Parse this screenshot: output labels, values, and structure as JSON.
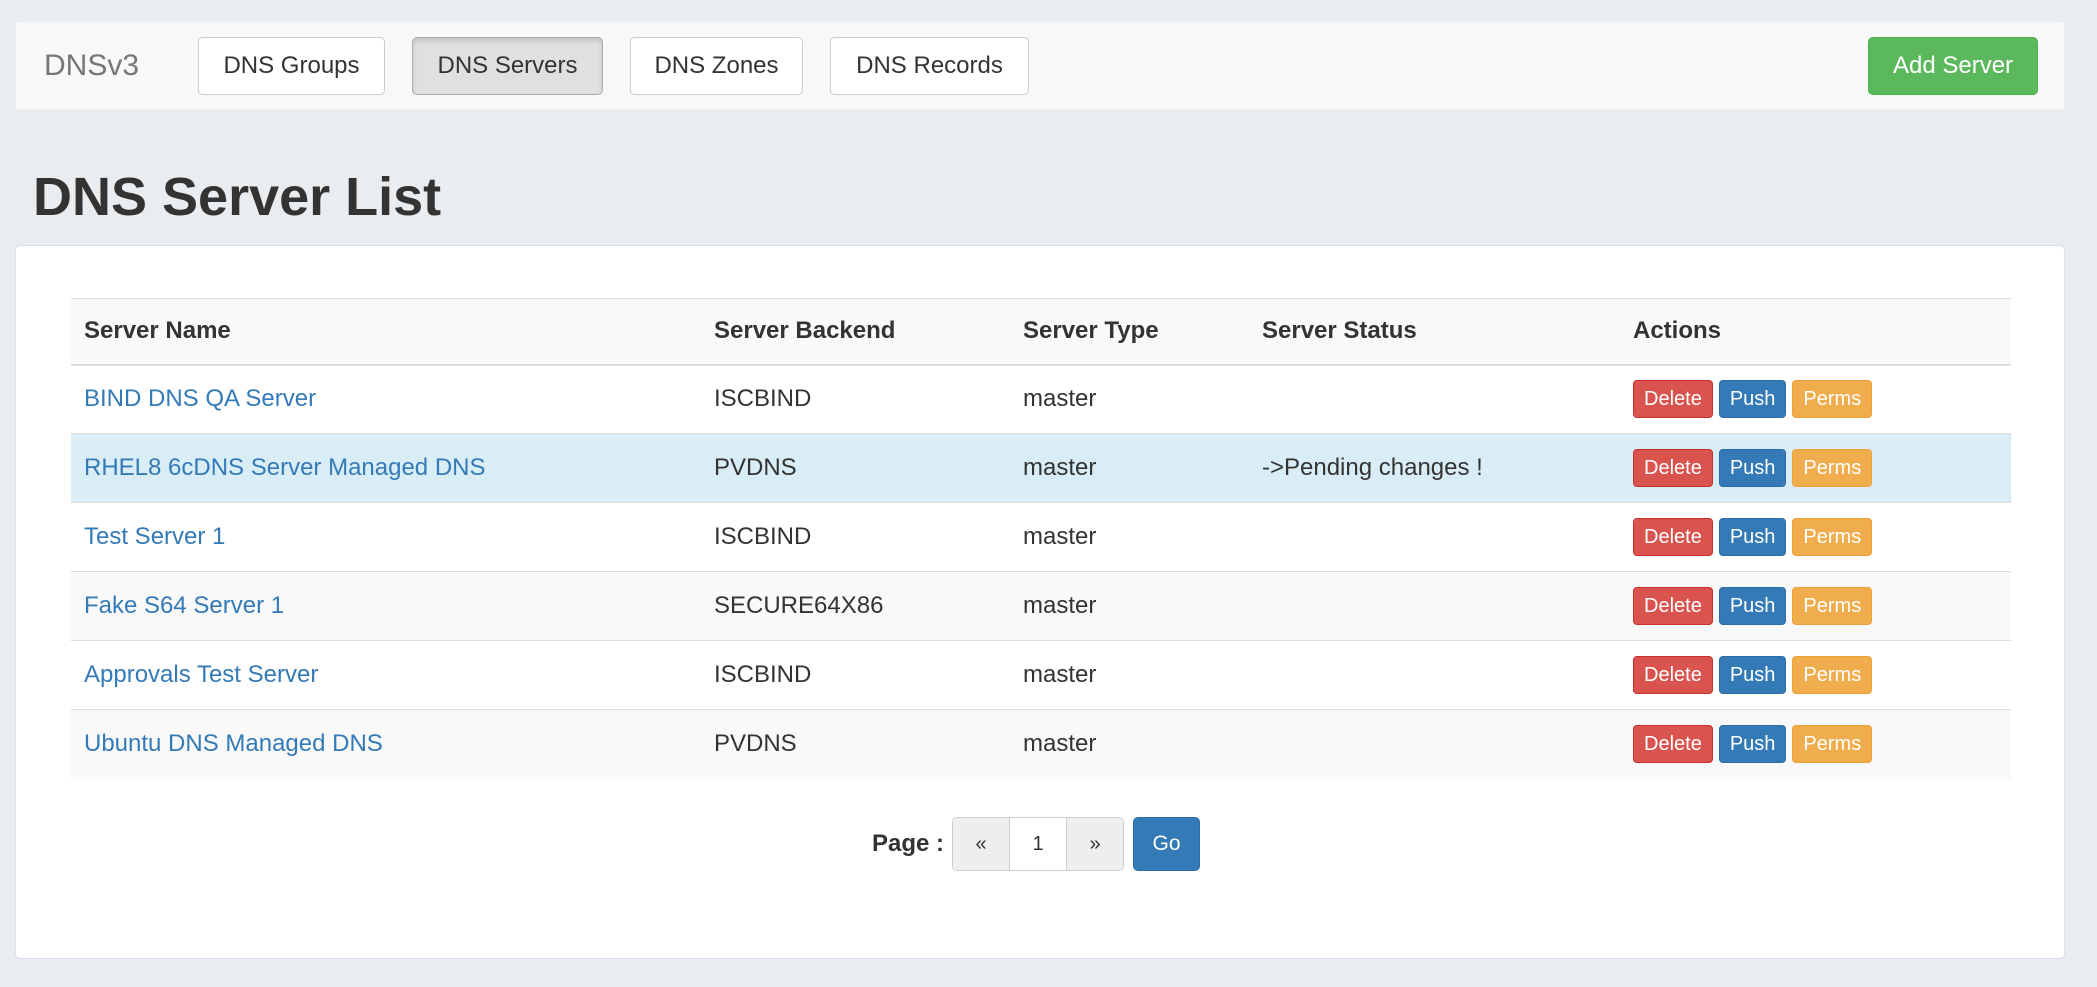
{
  "navbar": {
    "brand": "DNSv3",
    "items": [
      {
        "label": "DNS Groups"
      },
      {
        "label": "DNS Servers",
        "active": true
      },
      {
        "label": "DNS Zones"
      },
      {
        "label": "DNS Records"
      }
    ],
    "add_button": "Add Server"
  },
  "page": {
    "title": "DNS Server List"
  },
  "table": {
    "headers": [
      "Server Name",
      "Server Backend",
      "Server Type",
      "Server Status",
      "Actions"
    ],
    "rows": [
      {
        "name": "BIND DNS QA Server",
        "backend": "ISCBIND",
        "type": "master",
        "status": ""
      },
      {
        "name": "RHEL8 6cDNS Server Managed DNS",
        "backend": "PVDNS",
        "type": "master",
        "status": "->Pending changes !"
      },
      {
        "name": "Test Server 1",
        "backend": "ISCBIND",
        "type": "master",
        "status": ""
      },
      {
        "name": "Fake S64 Server 1",
        "backend": "SECURE64X86",
        "type": "master",
        "status": ""
      },
      {
        "name": "Approvals Test Server",
        "backend": "ISCBIND",
        "type": "master",
        "status": ""
      },
      {
        "name": "Ubuntu DNS Managed DNS",
        "backend": "PVDNS",
        "type": "master",
        "status": ""
      }
    ],
    "actions": {
      "delete": "Delete",
      "push": "Push",
      "perms": "Perms"
    }
  },
  "pagination": {
    "label": "Page :",
    "prev": "«",
    "current": "1",
    "next": "»",
    "go": "Go"
  },
  "colors": {
    "link": "#337ab7",
    "danger": "#d9534f",
    "primary": "#337ab7",
    "warning": "#f0ad4e",
    "success": "#5cb85c",
    "highlight_row": "#d9edf7"
  }
}
